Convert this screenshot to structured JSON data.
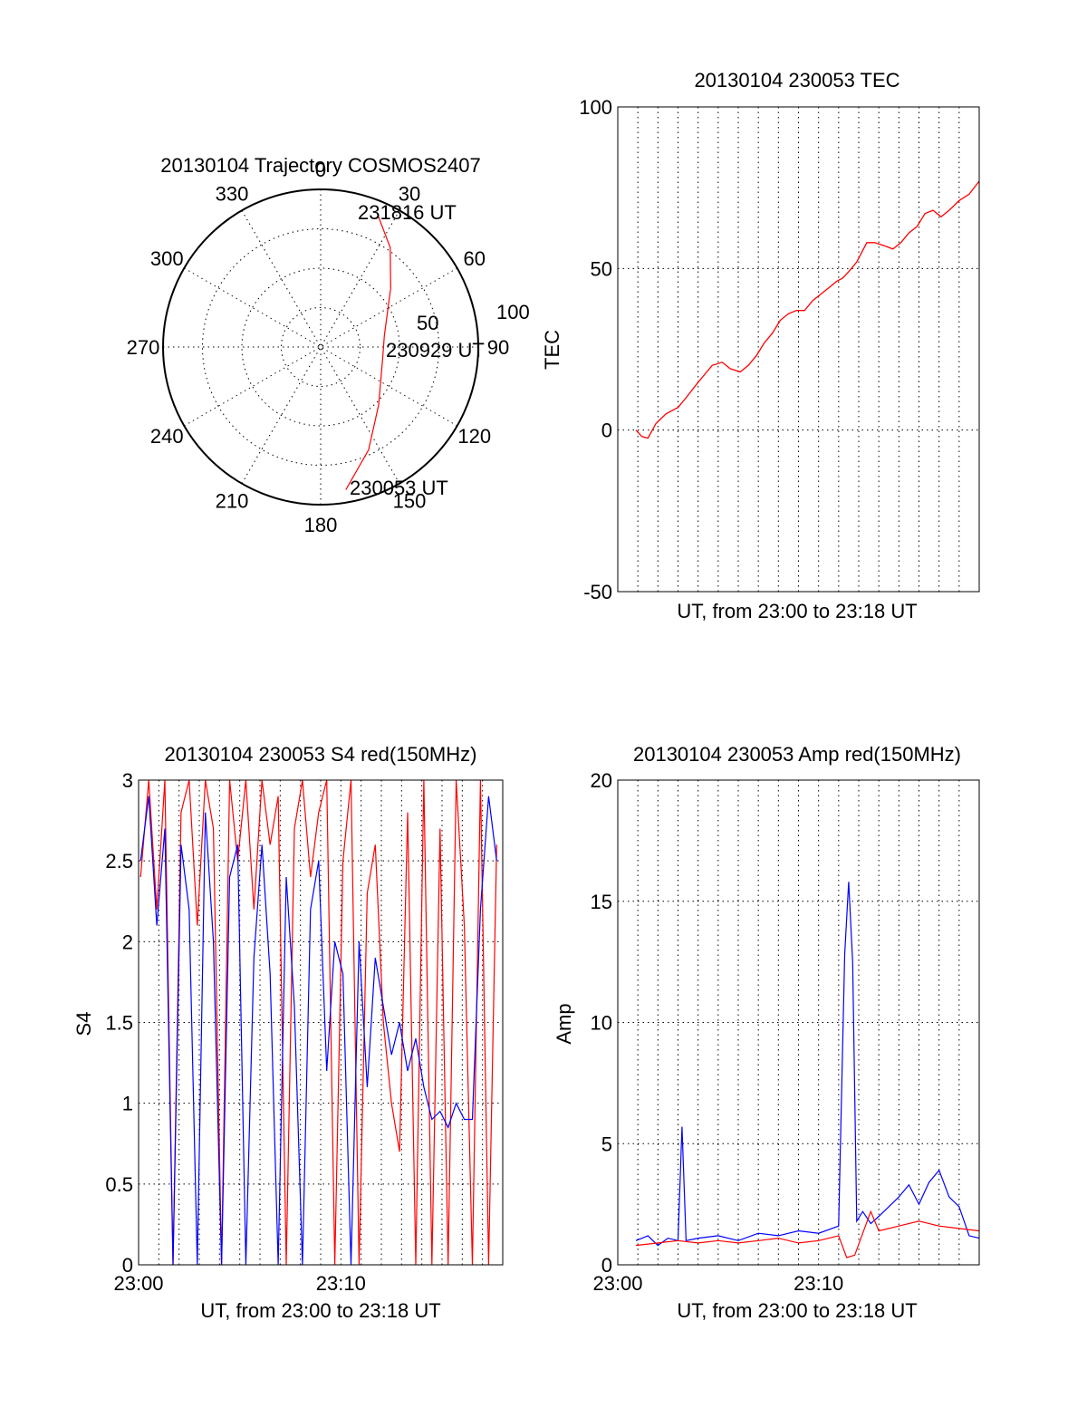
{
  "colors": {
    "red": "#ff0000",
    "blue": "#0000ff",
    "axis": "#000000"
  },
  "chart_data": [
    {
      "type": "polar",
      "title": "20130104 Trajectory COSMOS2407",
      "angle_labels": [
        "0",
        "30",
        "60",
        "90",
        "120",
        "150",
        "180",
        "210",
        "240",
        "270",
        "300",
        "330"
      ],
      "radial_labels": [
        "50",
        "100"
      ],
      "rlim": [
        0,
        100
      ],
      "grid": true,
      "series": [
        {
          "color": "#ff0000",
          "points": [
            {
              "az": 170,
              "r": 92
            },
            {
              "az": 155,
              "r": 72
            },
            {
              "az": 135,
              "r": 52
            },
            {
              "az": 100,
              "r": 40
            },
            {
              "az": 80,
              "r": 41
            },
            {
              "az": 50,
              "r": 58
            },
            {
              "az": 35,
              "r": 77
            },
            {
              "az": 23,
              "r": 92
            }
          ]
        }
      ],
      "annotations": [
        "231816 UT",
        "230929 UT",
        "230053 UT"
      ]
    },
    {
      "type": "line",
      "title": "20130104 230053 TEC",
      "xlabel": "UT, from 23:00 to 23:18 UT",
      "ylabel": "TEC",
      "xlim": [
        0,
        18
      ],
      "ylim": [
        -50,
        100
      ],
      "yticks": [
        "-50",
        "0",
        "50",
        "100"
      ],
      "grid": true,
      "series": [
        {
          "color": "#ff0000",
          "x": [
            0.9,
            1.2,
            1.5,
            1.9,
            2.4,
            3.0,
            3.4,
            3.9,
            4.3,
            4.7,
            5.2,
            5.6,
            6.1,
            6.5,
            6.9,
            7.3,
            7.7,
            8.1,
            8.5,
            8.9,
            9.3,
            9.7,
            10.1,
            10.5,
            10.9,
            11.2,
            11.5,
            11.9,
            12.4,
            12.8,
            13.3,
            13.7,
            14.1,
            14.5,
            14.9,
            15.3,
            15.7,
            16.1,
            16.5,
            17.0,
            17.5,
            18.0
          ],
          "y": [
            0,
            -2,
            -2.5,
            2,
            5,
            7,
            10,
            14,
            17,
            20,
            21,
            19,
            18,
            20,
            23,
            27,
            30,
            34,
            36,
            37,
            37,
            40,
            42,
            44,
            46,
            47,
            49,
            52,
            58,
            58,
            57,
            56,
            58,
            61,
            63,
            67,
            68,
            66,
            68,
            71,
            73,
            77
          ]
        }
      ]
    },
    {
      "type": "line",
      "title": "20130104 230053 S4 red(150MHz)",
      "xlabel": "UT, from 23:00 to 23:18 UT",
      "ylabel": "S4",
      "xlim": [
        0,
        18
      ],
      "ylim": [
        0,
        3
      ],
      "xticks": [
        "23:00",
        "23:10"
      ],
      "yticks": [
        "0",
        "0.5",
        "1",
        "1.5",
        "2",
        "2.5",
        "3"
      ],
      "grid": true,
      "series": [
        {
          "color": "#ff0000",
          "x": [
            0.1,
            0.5,
            0.9,
            1.3,
            1.7,
            2.1,
            2.5,
            2.9,
            3.3,
            3.7,
            4.1,
            4.5,
            4.9,
            5.3,
            5.7,
            6.1,
            6.5,
            6.9,
            7.3,
            7.7,
            8.1,
            8.5,
            8.9,
            9.3,
            9.7,
            10.1,
            10.5,
            10.9,
            11.3,
            11.7,
            12.1,
            12.5,
            12.9,
            13.3,
            13.7,
            14.1,
            14.5,
            14.9,
            15.3,
            15.7,
            16.1,
            16.5,
            16.9,
            17.3,
            17.7
          ],
          "y": [
            2.4,
            3,
            2.2,
            3,
            0,
            2.8,
            3,
            2.1,
            3,
            2.7,
            0,
            3,
            2.5,
            3,
            2.2,
            3,
            2.6,
            2.9,
            0,
            2.7,
            3,
            2.4,
            2.8,
            3,
            0,
            2.5,
            3,
            0,
            2.3,
            2.6,
            1.5,
            1.0,
            0.7,
            2.8,
            0,
            3,
            0,
            2.7,
            0,
            3,
            2.1,
            0,
            3,
            0,
            2.6
          ]
        },
        {
          "color": "#0000ff",
          "x": [
            0.1,
            0.5,
            0.9,
            1.3,
            1.7,
            2.1,
            2.5,
            2.9,
            3.3,
            3.7,
            4.1,
            4.5,
            4.9,
            5.3,
            5.7,
            6.1,
            6.5,
            6.9,
            7.3,
            7.7,
            8.1,
            8.5,
            8.9,
            9.3,
            9.7,
            10.1,
            10.5,
            10.9,
            11.3,
            11.7,
            12.1,
            12.5,
            12.9,
            13.3,
            13.7,
            14.1,
            14.5,
            14.9,
            15.3,
            15.7,
            16.1,
            16.5,
            16.9,
            17.3,
            17.7
          ],
          "y": [
            2.5,
            2.9,
            2.1,
            2.7,
            0,
            2.6,
            2.2,
            0,
            2.8,
            2.0,
            0,
            2.4,
            2.6,
            0,
            1.9,
            2.6,
            1.8,
            0,
            2.4,
            1.6,
            0,
            2.2,
            2.5,
            1.2,
            2.0,
            1.8,
            0,
            2.0,
            1.1,
            1.9,
            1.6,
            1.3,
            1.5,
            1.2,
            1.4,
            1.1,
            0.9,
            0.95,
            0.85,
            1.0,
            0.9,
            0.9,
            2.2,
            2.9,
            2.5
          ]
        }
      ]
    },
    {
      "type": "line",
      "title": "20130104 230053 Amp red(150MHz)",
      "xlabel": "UT, from 23:00 to 23:18 UT",
      "ylabel": "Amp",
      "xlim": [
        0,
        18
      ],
      "ylim": [
        0,
        20
      ],
      "xticks": [
        "23:00",
        "23:10"
      ],
      "yticks": [
        "0",
        "5",
        "10",
        "15",
        "20"
      ],
      "grid": true,
      "series": [
        {
          "color": "#ff0000",
          "x": [
            0.9,
            2.0,
            3.0,
            4.0,
            5.0,
            6.0,
            7.0,
            8.0,
            9.0,
            10.0,
            11.0,
            11.4,
            11.8,
            12.2,
            12.6,
            13.0,
            14.0,
            15.0,
            16.0,
            17.0,
            18.0
          ],
          "y": [
            0.8,
            0.9,
            1.0,
            0.9,
            1.0,
            0.9,
            1.0,
            1.1,
            0.9,
            1.0,
            1.2,
            0.3,
            0.4,
            1.3,
            2.2,
            1.4,
            1.6,
            1.8,
            1.6,
            1.5,
            1.4
          ]
        },
        {
          "color": "#0000ff",
          "x": [
            0.9,
            1.5,
            2.0,
            2.5,
            3.0,
            3.2,
            3.4,
            4.0,
            5.0,
            6.0,
            7.0,
            8.0,
            9.0,
            10.0,
            11.0,
            11.3,
            11.5,
            11.7,
            11.9,
            12.2,
            12.6,
            13.0,
            14.0,
            14.5,
            15.0,
            15.5,
            16.0,
            16.5,
            17.0,
            17.5,
            18.0
          ],
          "y": [
            1.0,
            1.2,
            0.8,
            1.1,
            1.0,
            5.7,
            1.0,
            1.1,
            1.2,
            1.0,
            1.3,
            1.2,
            1.4,
            1.3,
            1.6,
            12.8,
            15.8,
            12.5,
            1.8,
            2.2,
            1.7,
            2.0,
            2.8,
            3.3,
            2.5,
            3.4,
            3.9,
            2.8,
            2.4,
            1.2,
            1.1
          ]
        }
      ]
    }
  ]
}
